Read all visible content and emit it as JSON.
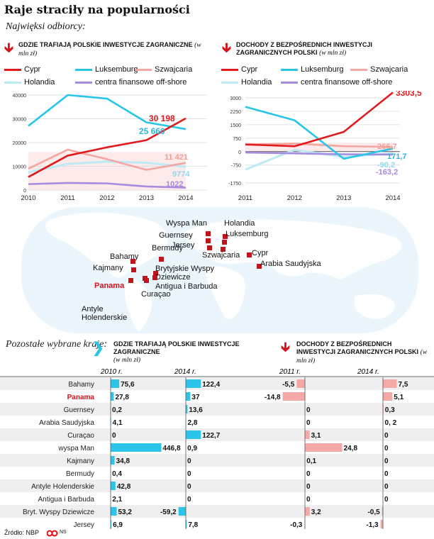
{
  "title": "Raje straciły na popularności",
  "subtitle": "Najwięksi odbiorcy:",
  "colors": {
    "cypr": "#e01a1f",
    "luksemburg": "#28c6e6",
    "szwajcaria": "#f2a7a3",
    "holandia": "#bdeaf3",
    "offshore": "#a58ce0",
    "accent_red": "#d8101c",
    "bar_blue": "#2cc4e8",
    "bar_pink": "#f4a8a8"
  },
  "chart_data": [
    {
      "type": "line",
      "title": "Gdzie trafiają polskie inwestycje zagraniczne",
      "unit": "(w mln zł)",
      "x": [
        2010,
        2011,
        2012,
        2013,
        2014
      ],
      "ylim": [
        0,
        40000
      ],
      "yticks": [
        0,
        10000,
        20000,
        30000,
        40000
      ],
      "series": [
        {
          "name": "Cypr",
          "color_key": "cypr",
          "values": [
            5500,
            14500,
            18000,
            21000,
            30198
          ]
        },
        {
          "name": "Luksemburg",
          "color_key": "luksemburg",
          "values": [
            27000,
            40000,
            38500,
            28500,
            25660
          ]
        },
        {
          "name": "Szwajcaria",
          "color_key": "szwajcaria",
          "values": [
            9000,
            17000,
            13000,
            8500,
            11421
          ]
        },
        {
          "name": "Holandia",
          "color_key": "holandia",
          "values": [
            7500,
            11000,
            12000,
            11500,
            9774
          ]
        },
        {
          "name": "centra finansowe off-shore",
          "color_key": "offshore",
          "values": [
            2500,
            3000,
            2800,
            1500,
            1022
          ]
        }
      ],
      "end_labels": [
        "30 198",
        "25 660",
        "11 421",
        "9774",
        "1022"
      ]
    },
    {
      "type": "line",
      "title": "Dochody z bezpośrednich inwestycji zagranicznych Polski",
      "unit": "(w mln zł)",
      "x": [
        2011,
        2012,
        2013,
        2014
      ],
      "ylim": [
        -1750,
        3000
      ],
      "yticks": [
        -1750,
        -750,
        0,
        750,
        1500,
        2250,
        3000
      ],
      "series": [
        {
          "name": "Cypr",
          "color_key": "cypr",
          "values": [
            400,
            300,
            1100,
            3303.5
          ]
        },
        {
          "name": "Luksemburg",
          "color_key": "luksemburg",
          "values": [
            2500,
            1750,
            -400,
            171.7
          ]
        },
        {
          "name": "Szwajcaria",
          "color_key": "szwajcaria",
          "values": [
            400,
            450,
            300,
            266.7
          ]
        },
        {
          "name": "Holandia",
          "color_key": "holandia",
          "values": [
            -1000,
            100,
            -300,
            -90.2
          ]
        },
        {
          "name": "centra finansowe off-shore",
          "color_key": "offshore",
          "values": [
            -50,
            -100,
            -150,
            -163.2
          ]
        }
      ],
      "end_labels": [
        "3303,5",
        "171,7",
        "266,7",
        "-90,2",
        "-163,2"
      ]
    },
    {
      "type": "bar",
      "title": "Gdzie trafiają polskie inwestycje zagraniczne",
      "unit": "(w mln zł)",
      "columns": [
        "2010 r.",
        "2014 r."
      ],
      "categories": [
        "Bahamy",
        "Panama",
        "Guernsey",
        "Arabia Saudyjska",
        "Curaçao",
        "wyspa Man",
        "Kajmany",
        "Bermudy",
        "Antyle Holenderskie",
        "Antigua i Barbuda",
        "Bryt. Wyspy Dziewicze",
        "Jersey"
      ],
      "series": [
        {
          "name": "2010 r.",
          "values": [
            75.6,
            27.8,
            0.2,
            4.1,
            0,
            446.8,
            34.8,
            0.4,
            42.8,
            2.1,
            53.2,
            6.9
          ],
          "labels": [
            "75,6",
            "27,8",
            "0,2",
            "4,1",
            "0",
            "446,8",
            "34,8",
            "0,4",
            "42,8",
            "2,1",
            "53,2",
            "6,9"
          ]
        },
        {
          "name": "2014 r.",
          "values": [
            122.4,
            37,
            13.6,
            2.8,
            122.7,
            0.9,
            0,
            0,
            0,
            0,
            -59.2,
            7.8
          ],
          "labels": [
            "122,4",
            "37",
            "13,6",
            "2,8",
            "122,7",
            "0,9",
            "0",
            "0",
            "0",
            "0",
            "-59,2",
            "7,8"
          ]
        }
      ],
      "xticks": [
        "-100",
        "0",
        "100",
        "200",
        "300",
        "400",
        "500"
      ],
      "xlim": [
        -100,
        500
      ]
    },
    {
      "type": "bar",
      "title": "Dochody z bezpośrednich inwestycji zagranicznych Polski",
      "unit": "(w mln zł)",
      "columns": [
        "2011 r.",
        "2014 r."
      ],
      "categories": [
        "Bahamy",
        "Panama",
        "Guernsey",
        "Arabia Saudyjska",
        "Curaçao",
        "wyspa Man",
        "Kajmany",
        "Bermudy",
        "Antyle Holenderskie",
        "Antigua i Barbuda",
        "Bryt. Wyspy Dziewicze",
        "Jersey"
      ],
      "series": [
        {
          "name": "2011 r.",
          "values": [
            -5.5,
            -14.8,
            0,
            0,
            3.1,
            24.8,
            0.1,
            0,
            0,
            0,
            3.2,
            -0.3
          ],
          "labels": [
            "-5,5",
            "-14,8",
            "0",
            "0",
            "3,1",
            "24,8",
            "0,1",
            "0",
            "0",
            "0",
            "3,2",
            "-0,3"
          ]
        },
        {
          "name": "2014 r.",
          "values": [
            7.5,
            5.1,
            0.3,
            0.2,
            0,
            0,
            0,
            0,
            0,
            0,
            -0.5,
            -1.3
          ],
          "labels": [
            "7,5",
            "5,1",
            "0,3",
            "0, 2",
            "0",
            "0",
            "0",
            "0",
            "0",
            "0",
            "-0,5",
            "-1,3"
          ]
        }
      ],
      "xticks_a": [
        "-20",
        "-10",
        "0",
        "10",
        "20",
        "30"
      ],
      "xticks_b": [
        "-10",
        "0",
        "10"
      ],
      "xlim_a": [
        -20,
        30
      ],
      "xlim_b": [
        -10,
        10
      ]
    }
  ],
  "map": {
    "labels": [
      "Wyspa Man",
      "Holandia",
      "Guernsey",
      "Luksemburg",
      "Jersey",
      "Szwajcaria",
      "Bermudy",
      "Cypr",
      "Bahamy",
      "Arabia Saudyjska",
      "Kajmany",
      "Brytyjskie Wyspy Dziewicze",
      "Panama",
      "Antigua i Barbuda",
      "Curaçao",
      "Antyle Holenderskie"
    ],
    "highlight": "Panama"
  },
  "bottom": {
    "left_heading": "Pozostałe wybrane kraje:",
    "highlight_category": "Panama"
  },
  "source": "Źródło: NBP",
  "logo_text": "NS"
}
